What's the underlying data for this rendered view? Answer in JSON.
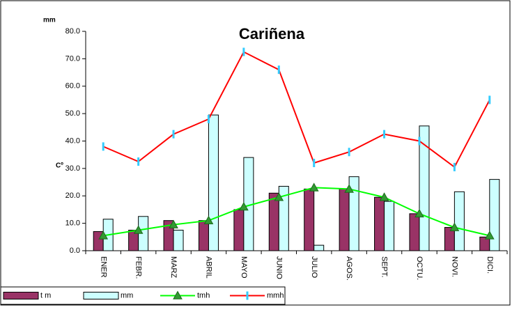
{
  "chart_data": {
    "type": "bar-line",
    "title": "Cariñena",
    "ylabel": "mm",
    "ylabel2": "Cº",
    "categories": [
      "ENER",
      "FEBR.",
      "MARZ",
      "ABRIL",
      "MAYO",
      "JUNIO",
      "JULIO",
      "AGOS.",
      "SEPT.",
      "OCTU.",
      "NOVI.",
      "DICI."
    ],
    "series": [
      {
        "name": "t m",
        "kind": "bar",
        "color": "#993366",
        "values": [
          7,
          7.5,
          11,
          11,
          15,
          21,
          22.5,
          22.5,
          19.5,
          13.5,
          8.5,
          5
        ]
      },
      {
        "name": "mm",
        "kind": "bar",
        "color": "#ccffff",
        "values": [
          11.5,
          12.5,
          7.5,
          49.5,
          34,
          23.5,
          2,
          27,
          18,
          45.5,
          21.5,
          26
        ]
      },
      {
        "name": "tmh",
        "kind": "line",
        "color": "#00ff00",
        "marker": "triangle",
        "marker_color": "#339933",
        "values": [
          5.5,
          7.5,
          9.5,
          11,
          16,
          19.5,
          23,
          22.5,
          19.5,
          13.5,
          8.5,
          5.5
        ]
      },
      {
        "name": "mmh",
        "kind": "line",
        "color": "#ff0000",
        "marker": "dash",
        "marker_color": "#33ccff",
        "values": [
          38,
          32.5,
          42.5,
          48,
          72.5,
          66,
          32,
          36,
          42.5,
          40,
          30.5,
          55
        ]
      }
    ],
    "ylim": [
      0,
      80
    ],
    "yticks": [
      {
        "value": 0,
        "label": "0.0"
      },
      {
        "value": 10,
        "label": "10.0"
      },
      {
        "value": 20,
        "label": "20.0"
      },
      {
        "value": 30,
        "label": "30.0"
      },
      {
        "value": 40,
        "label": "40.0"
      },
      {
        "value": 50,
        "label": "50.0"
      },
      {
        "value": 60,
        "label": "60.0"
      },
      {
        "value": 70,
        "label": "70.0"
      },
      {
        "value": 80,
        "label": "80.0"
      }
    ],
    "legend": "bottom-left"
  }
}
